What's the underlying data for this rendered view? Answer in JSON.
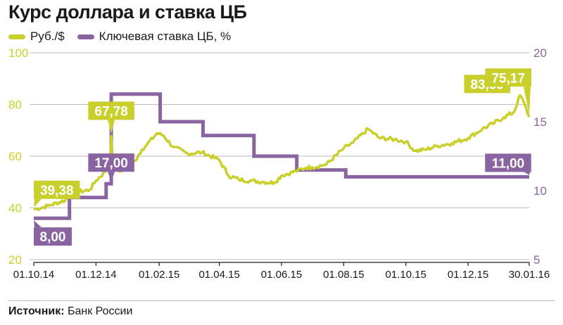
{
  "title": "Курс доллара и ставка ЦБ",
  "source_label": "Источник:",
  "source_value": "Банк России",
  "colors": {
    "rub": "#c9cf2b",
    "rate": "#8a64a0",
    "grid": "#bdbdbd",
    "text": "#1a1a1a"
  },
  "chart_data": {
    "type": "line",
    "legend_placement": "top-left",
    "x_ticks": [
      "01.10.14",
      "01.12.14",
      "01.02.15",
      "01.04.15",
      "01.06.15",
      "01.08.15",
      "01.10.15",
      "01.12.15",
      "30.01.16"
    ],
    "y_left": {
      "ticks": [
        "20",
        "40",
        "60",
        "80",
        "100"
      ],
      "range": [
        20,
        100
      ]
    },
    "y_right": {
      "ticks": [
        "5",
        "10",
        "15",
        "20"
      ],
      "range": [
        5,
        20
      ]
    },
    "grid": true,
    "series": [
      {
        "name": "Руб./$",
        "axis": "left",
        "points": [
          [
            "01.10.14",
            39.38
          ],
          [
            "15.10.14",
            40.8
          ],
          [
            "01.11.14",
            43.0
          ],
          [
            "10.11.14",
            45.9
          ],
          [
            "25.11.14",
            47.0
          ],
          [
            "01.12.14",
            50.5
          ],
          [
            "10.12.14",
            54.0
          ],
          [
            "15.12.14",
            58.5
          ],
          [
            "16.12.14",
            67.78
          ],
          [
            "17.12.14",
            61.0
          ],
          [
            "19.12.14",
            59.5
          ],
          [
            "24.12.14",
            54.0
          ],
          [
            "29.12.14",
            56.0
          ],
          [
            "05.01.15",
            56.3
          ],
          [
            "15.01.15",
            62.5
          ],
          [
            "20.01.15",
            64.5
          ],
          [
            "30.01.15",
            68.9
          ],
          [
            "05.02.15",
            68.0
          ],
          [
            "15.02.15",
            63.5
          ],
          [
            "01.03.15",
            61.0
          ],
          [
            "15.03.15",
            61.5
          ],
          [
            "01.04.15",
            58.5
          ],
          [
            "10.04.15",
            52.5
          ],
          [
            "20.04.15",
            51.0
          ],
          [
            "01.05.15",
            50.5
          ],
          [
            "15.05.15",
            50.0
          ],
          [
            "25.05.15",
            49.8
          ],
          [
            "01.06.15",
            52.5
          ],
          [
            "15.06.15",
            54.2
          ],
          [
            "25.06.15",
            55.5
          ],
          [
            "01.07.15",
            55.7
          ],
          [
            "15.07.15",
            56.8
          ],
          [
            "01.08.15",
            63.0
          ],
          [
            "10.08.15",
            65.2
          ],
          [
            "25.08.15",
            70.5
          ],
          [
            "05.09.15",
            67.0
          ],
          [
            "20.09.15",
            66.5
          ],
          [
            "01.10.15",
            65.6
          ],
          [
            "10.10.15",
            62.0
          ],
          [
            "20.10.15",
            62.5
          ],
          [
            "01.11.15",
            64.0
          ],
          [
            "15.11.15",
            65.0
          ],
          [
            "01.12.15",
            67.0
          ],
          [
            "15.12.15",
            70.5
          ],
          [
            "25.12.15",
            72.5
          ],
          [
            "05.01.16",
            75.0
          ],
          [
            "15.01.16",
            77.0
          ],
          [
            "21.01.16",
            83.59
          ],
          [
            "25.01.16",
            80.5
          ],
          [
            "30.01.16",
            75.17
          ]
        ]
      },
      {
        "name": "Ключевая ставка ЦБ, %",
        "axis": "right",
        "points": [
          [
            "01.10.14",
            8.0
          ],
          [
            "05.11.14",
            8.0
          ],
          [
            "05.11.14",
            9.5
          ],
          [
            "11.12.14",
            9.5
          ],
          [
            "11.12.14",
            10.5
          ],
          [
            "16.12.14",
            10.5
          ],
          [
            "16.12.14",
            17.0
          ],
          [
            "02.02.15",
            17.0
          ],
          [
            "02.02.15",
            15.0
          ],
          [
            "16.03.15",
            15.0
          ],
          [
            "16.03.15",
            14.0
          ],
          [
            "05.05.15",
            14.0
          ],
          [
            "05.05.15",
            12.5
          ],
          [
            "16.06.15",
            12.5
          ],
          [
            "16.06.15",
            11.5
          ],
          [
            "03.08.15",
            11.5
          ],
          [
            "03.08.15",
            11.0
          ],
          [
            "30.01.16",
            11.0
          ]
        ]
      }
    ],
    "annotations": [
      {
        "series": 0,
        "date": "01.10.14",
        "label": "39,38"
      },
      {
        "series": 0,
        "date": "16.12.14",
        "label": "67,78"
      },
      {
        "series": 0,
        "date": "21.01.16",
        "label": "83,59"
      },
      {
        "series": 0,
        "date": "30.01.16",
        "label": "75,17"
      },
      {
        "series": 1,
        "date": "01.10.14",
        "label": "8,00"
      },
      {
        "series": 1,
        "date": "16.12.14",
        "label": "17,00"
      },
      {
        "series": 1,
        "date": "30.01.16",
        "label": "11,00"
      }
    ]
  }
}
